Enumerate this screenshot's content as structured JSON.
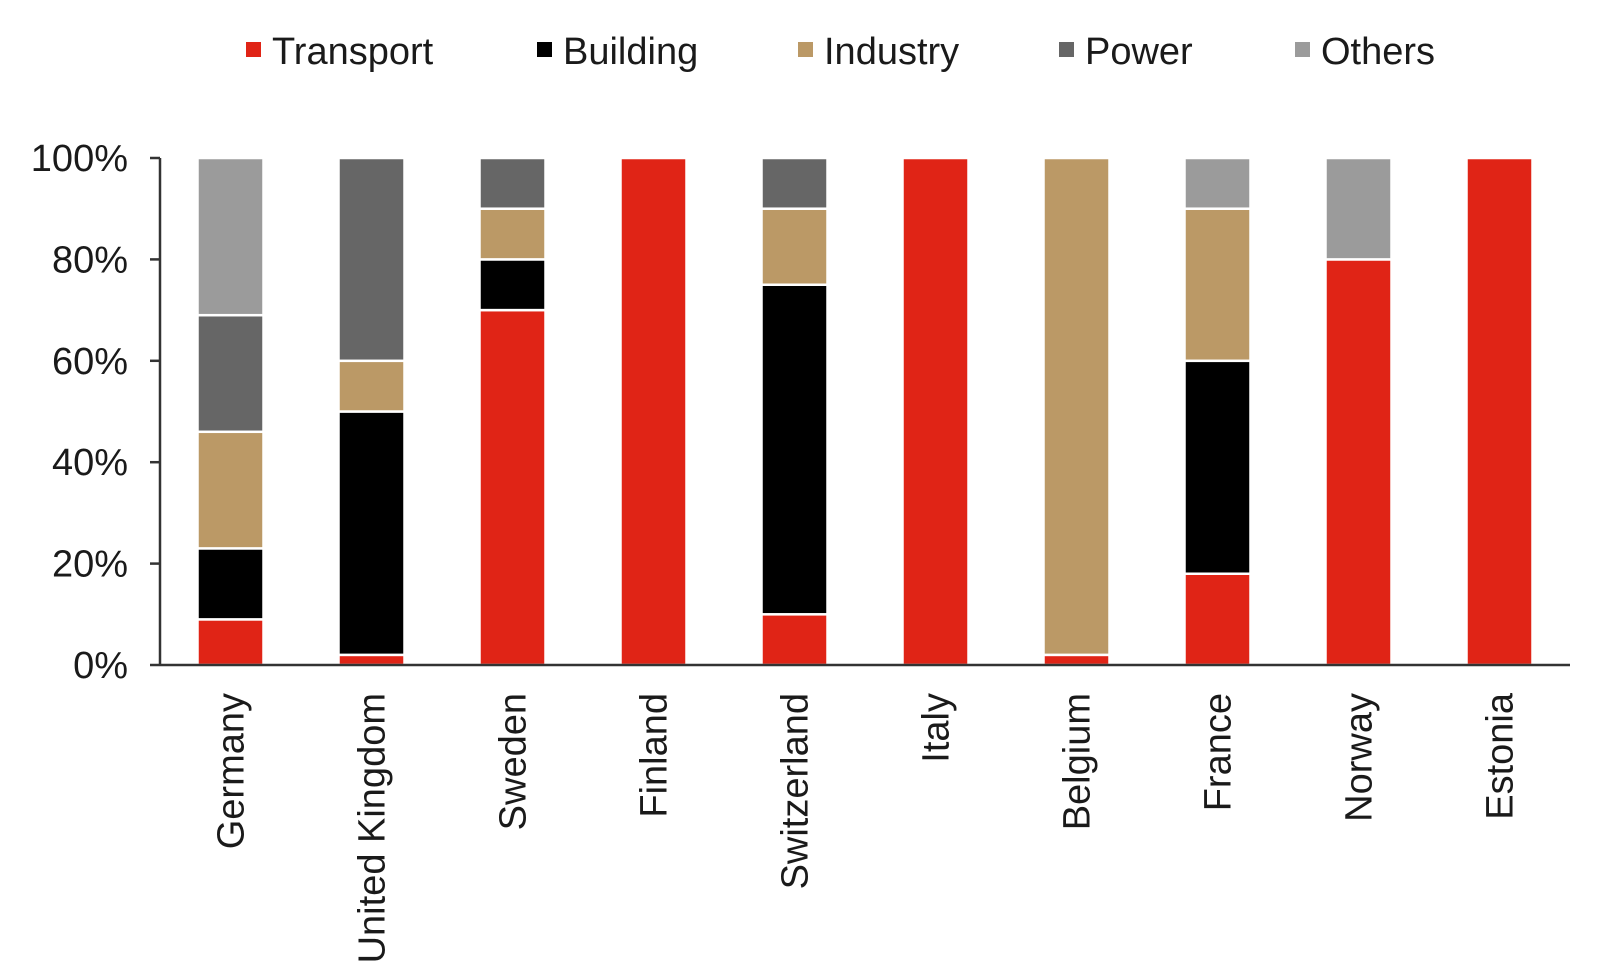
{
  "chart_data": {
    "type": "bar",
    "stacked": true,
    "categories": [
      "Germany",
      "United Kingdom",
      "Sweden",
      "Finland",
      "Switzerland",
      "Italy",
      "Belgium",
      "France",
      "Norway",
      "Estonia"
    ],
    "series": [
      {
        "name": "Transport",
        "color": "#e02416",
        "values": [
          9,
          2,
          70,
          100,
          10,
          100,
          2,
          18,
          80,
          100
        ]
      },
      {
        "name": "Building",
        "color": "#000000",
        "values": [
          14,
          48,
          10,
          0,
          65,
          0,
          0,
          42,
          0,
          0
        ]
      },
      {
        "name": "Industry",
        "color": "#bb9966",
        "values": [
          23,
          10,
          10,
          0,
          15,
          0,
          98,
          30,
          0,
          0
        ]
      },
      {
        "name": "Power",
        "color": "#666666",
        "values": [
          23,
          40,
          10,
          0,
          10,
          0,
          0,
          0,
          0,
          0
        ]
      },
      {
        "name": "Others",
        "color": "#9b9b9b",
        "values": [
          31,
          0,
          0,
          0,
          0,
          0,
          0,
          10,
          20,
          0
        ]
      }
    ],
    "yticks": [
      "0%",
      "20%",
      "40%",
      "60%",
      "80%",
      "100%"
    ],
    "ylim": [
      0,
      100
    ],
    "legend_position": "top",
    "grid": false
  }
}
